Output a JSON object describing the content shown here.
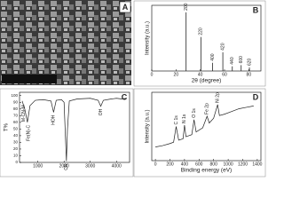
{
  "image_panel": {
    "label": "A"
  },
  "chart_data": [
    {
      "type": "bar",
      "label": "B",
      "xlabel": "2θ (degree)",
      "ylabel": "Intensity (a.u.)",
      "x": [
        28.3,
        40.5,
        50.2,
        58.6,
        66.4,
        73.7,
        80.5
      ],
      "values": [
        100,
        58,
        14,
        32,
        8,
        10,
        6
      ],
      "xlim": [
        0,
        90
      ],
      "ylim": [
        0,
        112
      ],
      "xticks": [
        0,
        20,
        40,
        60,
        80
      ],
      "color": "#222",
      "annotations": [
        {
          "text": "200",
          "x": 28.3
        },
        {
          "text": "220",
          "x": 40.5
        },
        {
          "text": "400",
          "x": 50.2
        },
        {
          "text": "420",
          "x": 58.6
        },
        {
          "text": "440",
          "x": 66.4
        },
        {
          "text": "600",
          "x": 73.7
        },
        {
          "text": "620",
          "x": 80.5
        }
      ]
    },
    {
      "type": "line",
      "label": "C",
      "ylabel": "T%",
      "x": [
        400,
        500,
        600,
        700,
        900,
        1200,
        1500,
        1600,
        1700,
        1900,
        2000,
        2050,
        2090,
        2130,
        2200,
        2500,
        3000,
        3300,
        3400,
        3500,
        3800,
        4000,
        4200,
        4400
      ],
      "values": [
        92,
        80,
        60,
        85,
        93,
        94,
        92,
        75,
        93,
        94,
        90,
        40,
        2,
        50,
        92,
        95,
        96,
        93,
        84,
        93,
        95,
        96,
        95,
        96
      ],
      "xlim": [
        300,
        4500
      ],
      "ylim": [
        0,
        105
      ],
      "xticks": [
        1000,
        2000,
        3000,
        4000
      ],
      "yticks": [
        0,
        10,
        20,
        30,
        40,
        50,
        60,
        70,
        80,
        90,
        100
      ],
      "color": "#222",
      "annotations": [
        {
          "text": "M-CN-M",
          "x": 450
        },
        {
          "text": "Fe(N)-C",
          "x": 650
        },
        {
          "text": "HOH",
          "x": 1600
        },
        {
          "text": "CN",
          "x": 2090
        },
        {
          "text": "OH",
          "x": 3400
        }
      ]
    },
    {
      "type": "line",
      "label": "D",
      "xlabel": "Binding energy (eV)",
      "ylabel": "Intensity (a.u.)",
      "x": [
        0,
        100,
        200,
        250,
        285,
        320,
        380,
        400,
        420,
        500,
        531,
        560,
        650,
        710,
        740,
        800,
        855,
        880,
        950,
        1050,
        1150,
        1250,
        1350
      ],
      "values": [
        20,
        22,
        25,
        27,
        50,
        30,
        32,
        52,
        35,
        38,
        60,
        42,
        48,
        65,
        55,
        62,
        82,
        66,
        68,
        72,
        76,
        78,
        80
      ],
      "xlim": [
        -50,
        1450
      ],
      "ylim": [
        0,
        100
      ],
      "xticks": [
        0,
        200,
        400,
        600,
        800,
        1000,
        1200,
        1400
      ],
      "color": "#222",
      "annotations": [
        {
          "text": "C 1s",
          "x": 285
        },
        {
          "text": "N 1s",
          "x": 400
        },
        {
          "text": "O 1s",
          "x": 531
        },
        {
          "text": "Fe 2p",
          "x": 710
        },
        {
          "text": "Ni 2p",
          "x": 855
        }
      ]
    }
  ]
}
